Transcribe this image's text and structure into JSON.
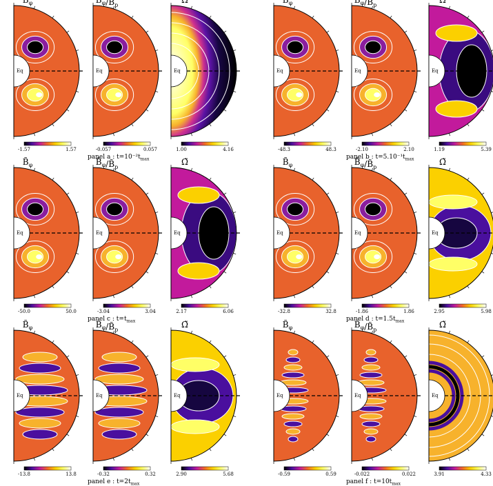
{
  "figure": {
    "equator_label": "Eq",
    "field_titles": [
      "B̃_φ",
      "B̃_φ/B̃_p",
      "Ω̃"
    ],
    "colormap": [
      "#000000",
      "#4a0f9e",
      "#c21a9c",
      "#f26a26",
      "#fbd000",
      "#ffff66",
      "#ffffff"
    ],
    "background_color": "#e8622c",
    "contour_color": "#ffffff"
  },
  "chart_data": [
    {
      "panel": "a",
      "label": "panel a : t=10⁻²t_max",
      "fields": [
        {
          "name": "B_phi",
          "colorbar_min": "-1.57",
          "colorbar_max": "1.57",
          "pattern": "single-cell"
        },
        {
          "name": "B_phi_over_B_p",
          "colorbar_min": "-0.057",
          "colorbar_max": "0.057",
          "pattern": "single-cell"
        },
        {
          "name": "Omega",
          "colorbar_min": "1.00",
          "colorbar_max": "4.16",
          "pattern": "radial-rings"
        }
      ]
    },
    {
      "panel": "b",
      "label": "panel b : t=5.10⁻¹t_max",
      "fields": [
        {
          "name": "B_phi",
          "colorbar_min": "-48.3",
          "colorbar_max": "48.3",
          "pattern": "single-cell"
        },
        {
          "name": "B_phi_over_B_p",
          "colorbar_min": "-2.10",
          "colorbar_max": "2.10",
          "pattern": "single-cell"
        },
        {
          "name": "Omega",
          "colorbar_min": "1.19",
          "colorbar_max": "5.39",
          "pattern": "core-blob"
        }
      ]
    },
    {
      "panel": "c",
      "label": "panel c : t=t_max",
      "fields": [
        {
          "name": "B_phi",
          "colorbar_min": "-50.0",
          "colorbar_max": "50.0",
          "pattern": "single-cell"
        },
        {
          "name": "B_phi_over_B_p",
          "colorbar_min": "-3.04",
          "colorbar_max": "3.04",
          "pattern": "single-cell"
        },
        {
          "name": "Omega",
          "colorbar_min": "2.17",
          "colorbar_max": "6.06",
          "pattern": "core-blob"
        }
      ]
    },
    {
      "panel": "d",
      "label": "panel d : t=1.5t_max",
      "fields": [
        {
          "name": "B_phi",
          "colorbar_min": "-32.8",
          "colorbar_max": "32.8",
          "pattern": "single-cell"
        },
        {
          "name": "B_phi_over_B_p",
          "colorbar_min": "-1.86",
          "colorbar_max": "1.86",
          "pattern": "single-cell"
        },
        {
          "name": "Omega",
          "colorbar_min": "2.95",
          "colorbar_max": "5.98",
          "pattern": "banded-core"
        }
      ]
    },
    {
      "panel": "e",
      "label": "panel e : t=2t_max",
      "fields": [
        {
          "name": "B_phi",
          "colorbar_min": "-13.8",
          "colorbar_max": "13.8",
          "pattern": "multi-cell"
        },
        {
          "name": "B_phi_over_B_p",
          "colorbar_min": "-0.32",
          "colorbar_max": "0.32",
          "pattern": "multi-cell"
        },
        {
          "name": "Omega",
          "colorbar_min": "2.90",
          "colorbar_max": "5.68",
          "pattern": "banded-core"
        }
      ]
    },
    {
      "panel": "f",
      "label": "panel f : t=10t_max",
      "fields": [
        {
          "name": "B_phi",
          "colorbar_min": "-0.59",
          "colorbar_max": "0.59",
          "pattern": "fine-cells"
        },
        {
          "name": "B_phi_over_B_p",
          "colorbar_min": "-0.022",
          "colorbar_max": "0.022",
          "pattern": "fine-cells"
        },
        {
          "name": "Omega",
          "colorbar_min": "3.91",
          "colorbar_max": "4.33",
          "pattern": "arc-bands"
        }
      ]
    }
  ]
}
